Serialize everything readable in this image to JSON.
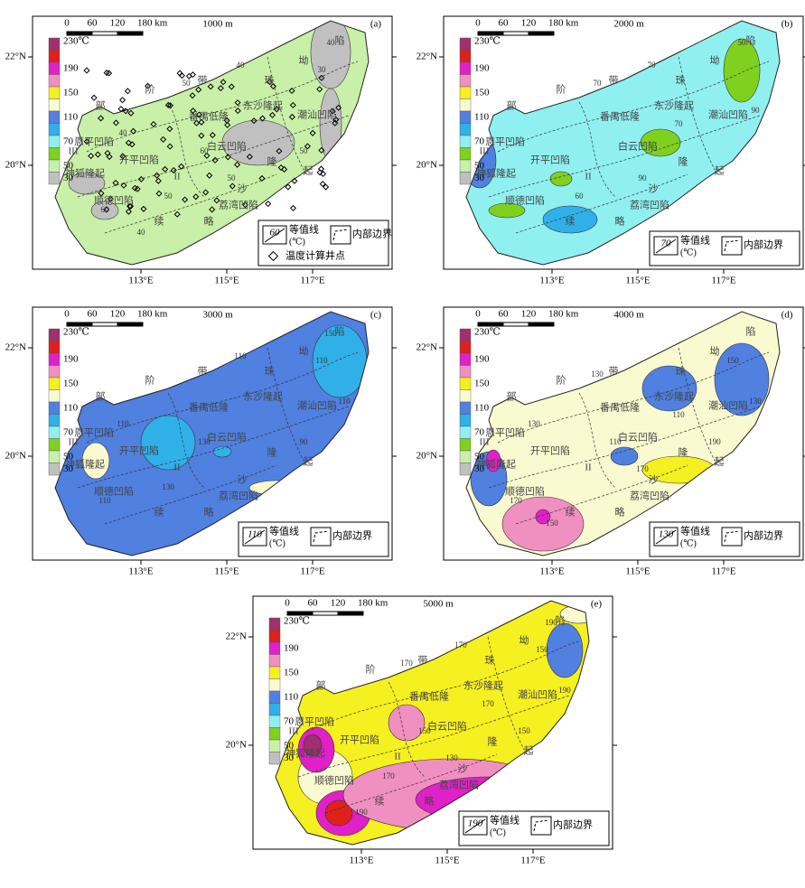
{
  "scale_labels": [
    "0",
    "60",
    "120",
    "180 km"
  ],
  "lat_labels": [
    "22°N",
    "20°N"
  ],
  "lon_labels": [
    "113°E",
    "115°E",
    "117°E"
  ],
  "legend": {
    "labels": [
      "230℃",
      "190",
      "150",
      "110",
      "70",
      "50",
      "30"
    ],
    "colors": [
      "#a0306e",
      "#e0201c",
      "#e020c8",
      "#f090c0",
      "#f5f020",
      "#fafad0",
      "#5080e0",
      "#30b0e8",
      "#90f0f0",
      "#80d020",
      "#c8f0a8",
      "#c0c0c0"
    ]
  },
  "contour_legend": "等值线",
  "contour_unit": "(℃)",
  "boundary_legend": "内部边界",
  "well_legend": "温度计算井点",
  "region_labels": [
    "部",
    "阶",
    "带",
    "珠",
    "坳",
    "陷",
    "东沙隆起",
    "潮汕凹陷",
    "番禺低隆",
    "白云凹陷",
    "荔湾凹陷",
    "神狐隆起",
    "顺德凹陷",
    "开平凹陷",
    "恩平凹陷",
    "II",
    "III",
    "续",
    "略",
    "沙",
    "隆",
    "起"
  ],
  "panels": [
    {
      "label": "(a)",
      "depth": "1000 m",
      "contour_sample": "60",
      "contour_labels": [
        "50",
        "50",
        "40",
        "30",
        "40",
        "60",
        "50",
        "60",
        "40",
        "50",
        "40"
      ]
    },
    {
      "label": "(b)",
      "depth": "2000 m",
      "contour_sample": "70",
      "contour_labels": [
        "70",
        "60",
        "50",
        "90",
        "70",
        "70",
        "90"
      ]
    },
    {
      "label": "(c)",
      "depth": "3000 m",
      "contour_sample": "110",
      "contour_labels": [
        "110",
        "110",
        "110",
        "90",
        "130",
        "110",
        "130",
        "150",
        "110"
      ]
    },
    {
      "label": "(d)",
      "depth": "4000 m",
      "contour_sample": "130",
      "contour_labels": [
        "130",
        "110",
        "130",
        "170",
        "150",
        "150",
        "130",
        "170",
        "190",
        "110"
      ]
    },
    {
      "label": "(e)",
      "depth": "5000 m",
      "contour_sample": "190",
      "contour_labels": [
        "150",
        "150",
        "170",
        "170",
        "190",
        "190",
        "170",
        "170",
        "130",
        "190",
        "150"
      ]
    }
  ]
}
